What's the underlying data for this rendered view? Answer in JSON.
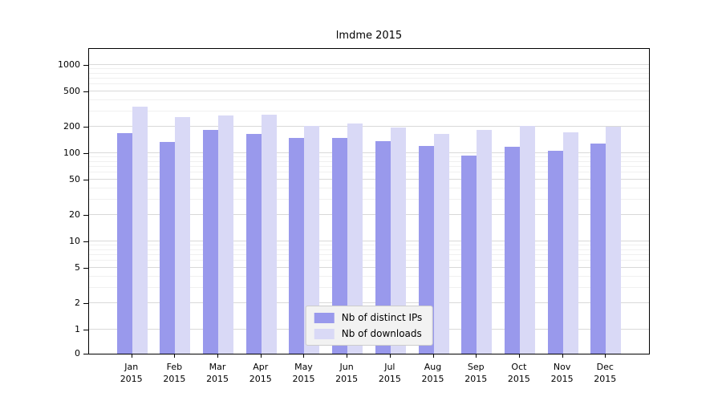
{
  "title": "lmdme 2015",
  "chart_data": {
    "type": "bar",
    "title": "lmdme 2015",
    "categories": [
      "Jan",
      "Feb",
      "Mar",
      "Apr",
      "May",
      "Jun",
      "Jul",
      "Aug",
      "Sep",
      "Oct",
      "Nov",
      "Dec"
    ],
    "year": "2015",
    "series": [
      {
        "name": "Nb of distinct IPs",
        "color": "#9999ec",
        "values": [
          170,
          135,
          185,
          165,
          148,
          148,
          138,
          122,
          95,
          118,
          107,
          128
        ]
      },
      {
        "name": "Nb of downloads",
        "color": "#d9d9f6",
        "values": [
          340,
          255,
          270,
          275,
          205,
          215,
          195,
          165,
          182,
          205,
          172,
          200
        ]
      }
    ],
    "yscale": "symlog",
    "yticks": [
      0,
      1,
      2,
      5,
      10,
      20,
      50,
      100,
      200,
      500,
      1000
    ],
    "ylim": [
      0,
      1500
    ],
    "xlabel": "",
    "ylabel": "",
    "grid": true,
    "legend_position": "lower center"
  },
  "colors": {
    "bar_dark": "#9999ec",
    "bar_light": "#d9d9f6",
    "grid_major": "#d9d9d9",
    "grid_minor": "#f0f0f0",
    "legend_bg": "#f2f2f2",
    "legend_border": "#cccccc"
  }
}
